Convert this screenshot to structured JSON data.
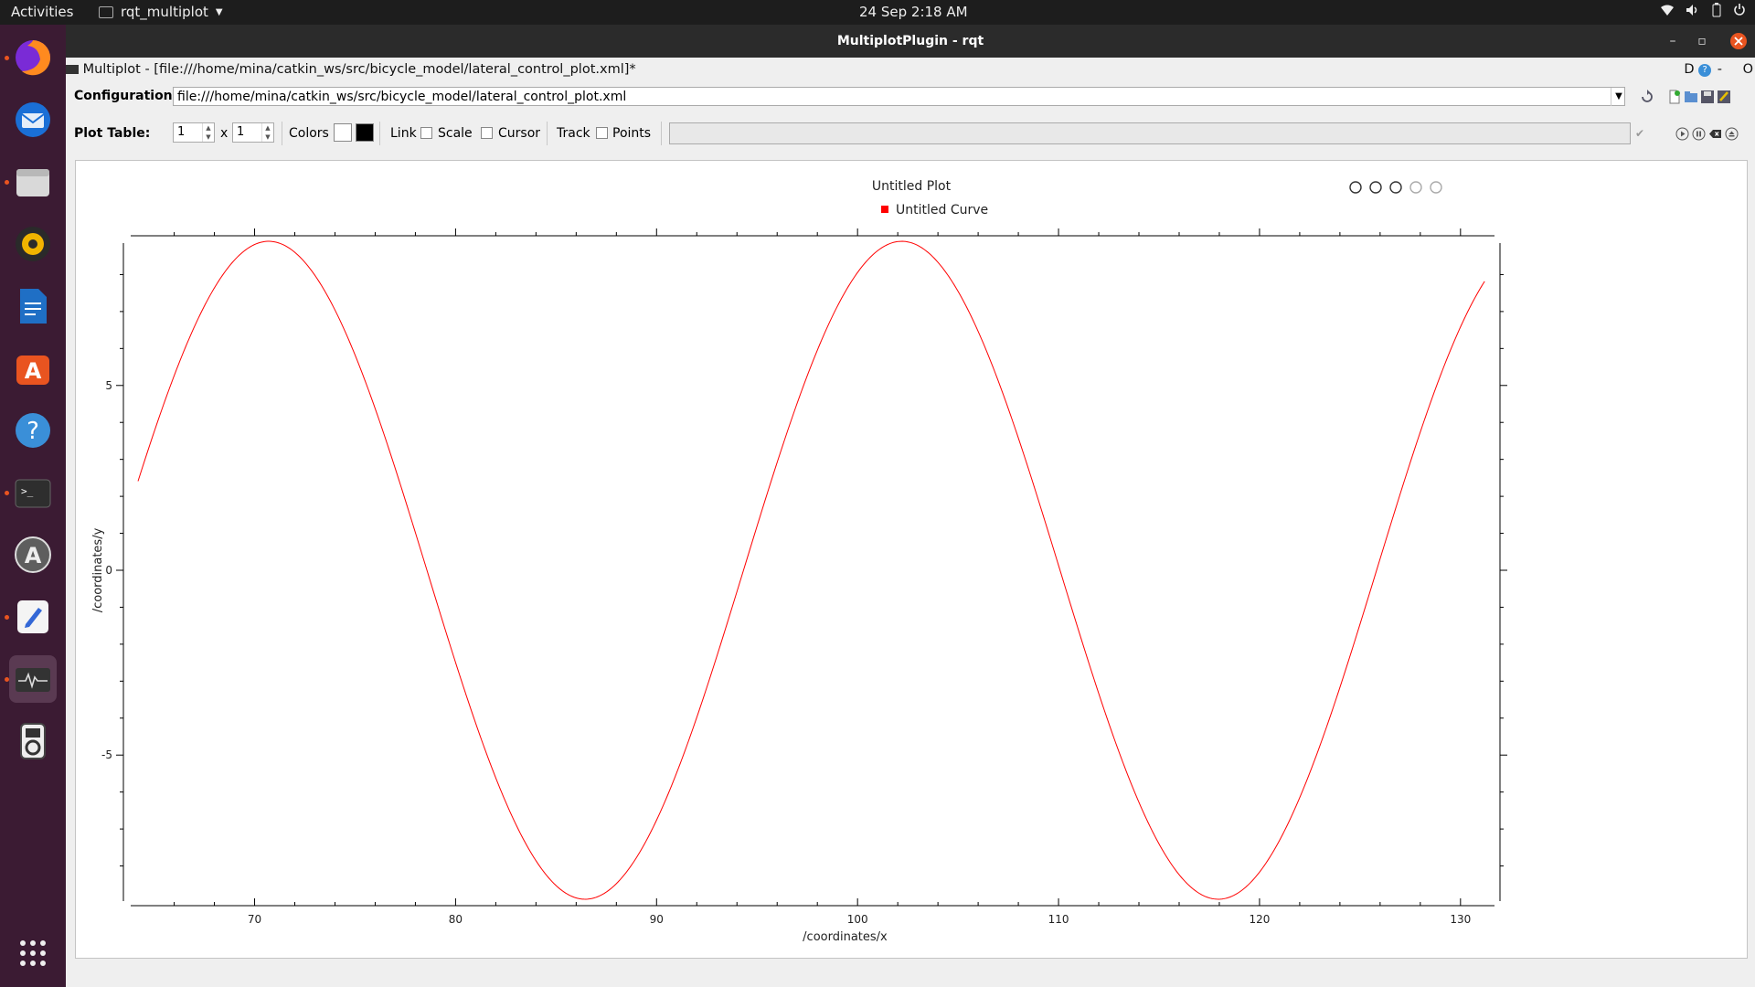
{
  "topbar": {
    "activities": "Activities",
    "app_name": "rqt_multiplot",
    "clock": "24 Sep  2:18 AM"
  },
  "dock": {
    "apps": [
      "firefox-icon",
      "thunderbird-icon",
      "files-icon",
      "rhythmbox-icon",
      "writer-icon",
      "software-icon",
      "help-icon",
      "terminal-icon",
      "software-updater-icon",
      "text-editor-icon",
      "rqt-plot-icon",
      "ipod-icon",
      "show-apps-icon"
    ]
  },
  "window": {
    "title": "MultiplotPlugin - rqt",
    "subtitle": "Multiplot - [file:///home/mina/catkin_ws/src/bicycle_model/lateral_control_plot.xml]*",
    "help_letters": [
      "D",
      "O"
    ]
  },
  "config": {
    "label": "Configuration:",
    "value": "file:///home/mina/catkin_ws/src/bicycle_model/lateral_control_plot.xml"
  },
  "plot_table": {
    "label": "Plot Table:",
    "rows": "1",
    "x": "x",
    "cols": "1",
    "colors_label": "Colors",
    "link_label": "Link",
    "scale_label": "Scale",
    "cursor_label": "Cursor",
    "track_label": "Track",
    "points_label": "Points"
  },
  "chart_data": {
    "type": "line",
    "title": "Untitled Plot",
    "legend": [
      "Untitled Curve"
    ],
    "xlabel": "/coordinates/x",
    "ylabel": "/coordinates/y",
    "xlim": [
      64.2,
      131.6
    ],
    "ylim": [
      -9.0,
      9.0
    ],
    "x_ticks": [
      70,
      80,
      90,
      100,
      110,
      120,
      130
    ],
    "y_ticks": [
      5,
      0,
      -5
    ],
    "grid": false,
    "legend_position": "top-center",
    "color": "#ff0000",
    "series": [
      {
        "name": "Untitled Curve",
        "amplitude": 8.9,
        "period": 31.5,
        "peak_x": 70.7,
        "x_start": 64.2,
        "x_end": 131.2
      }
    ]
  }
}
